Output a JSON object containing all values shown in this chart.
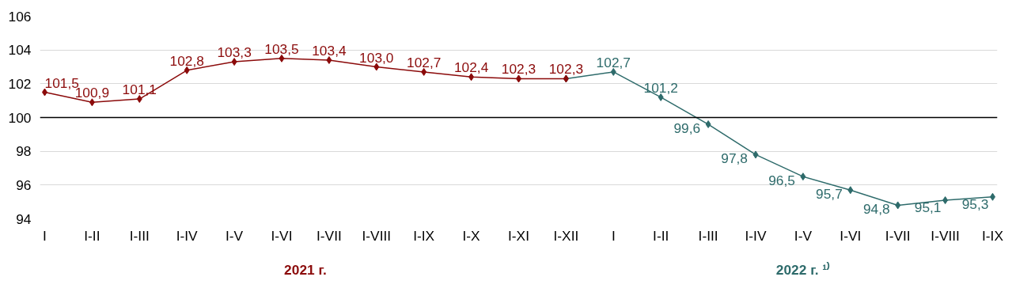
{
  "chart_data": {
    "type": "line",
    "categories": [
      "I",
      "I-II",
      "I-III",
      "I-IV",
      "I-V",
      "I-VI",
      "I-VII",
      "I-VIII",
      "I-IX",
      "I-X",
      "I-XI",
      "I-XII",
      "I",
      "I-II",
      "I-III",
      "I-IV",
      "I-V",
      "I-VI",
      "I-VII",
      "I-VIII",
      "I-IX"
    ],
    "series": [
      {
        "name": "2021 г.",
        "color": "#8b0a0a",
        "values": [
          101.5,
          100.9,
          101.1,
          102.8,
          103.3,
          103.5,
          103.4,
          103.0,
          102.7,
          102.4,
          102.3,
          102.3,
          null,
          null,
          null,
          null,
          null,
          null,
          null,
          null,
          null
        ],
        "value_labels": [
          "101,5",
          "100,9",
          "101,1",
          "102,8",
          "103,3",
          "103,5",
          "103,4",
          "103,0",
          "102,7",
          "102,4",
          "102,3",
          "102,3",
          null,
          null,
          null,
          null,
          null,
          null,
          null,
          null,
          null
        ]
      },
      {
        "name": "2022 г. ¹⁾",
        "color": "#2e6b6b",
        "values": [
          null,
          null,
          null,
          null,
          null,
          null,
          null,
          null,
          null,
          null,
          null,
          102.3,
          102.7,
          101.2,
          99.6,
          97.8,
          96.5,
          95.7,
          94.8,
          95.1,
          95.3
        ],
        "value_labels": [
          null,
          null,
          null,
          null,
          null,
          null,
          null,
          null,
          null,
          null,
          null,
          null,
          "102,7",
          "101,2",
          "99,6",
          "97,8",
          "96,5",
          "95,7",
          "94,8",
          "95,1",
          "95,3"
        ]
      }
    ],
    "ylim": [
      94,
      106
    ],
    "yticks": [
      94,
      96,
      98,
      100,
      102,
      104,
      106
    ],
    "grid": "y",
    "marker": "diamond",
    "line_style": "solid",
    "ref_lines": [
      {
        "axis": "y",
        "value": 100,
        "color": "#000000"
      }
    ]
  }
}
